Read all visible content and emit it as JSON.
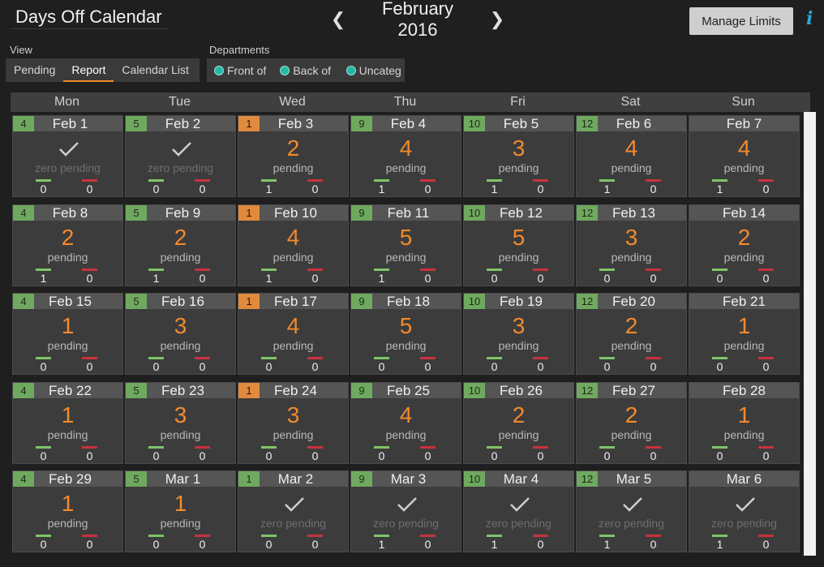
{
  "header": {
    "title": "Days Off Calendar",
    "month": "February 2016",
    "prev_icon": "chevron-left-icon",
    "next_icon": "chevron-right-icon",
    "manage_limits": "Manage Limits",
    "info_icon": "i"
  },
  "view": {
    "label": "View",
    "tabs": [
      "Pending",
      "Report",
      "Calendar List"
    ],
    "active": "Report"
  },
  "departments": {
    "label": "Departments",
    "items": [
      "Front of",
      "Back of",
      "Uncateg"
    ],
    "dot_color": "#26b8a6"
  },
  "days": [
    "Mon",
    "Tue",
    "Wed",
    "Thu",
    "Fri",
    "Sat",
    "Sun"
  ],
  "colors": {
    "accent": "#f28a2d",
    "approved": "#7fc46a",
    "denied": "#c8323c",
    "count_green": "#6fa95f",
    "count_orange": "#e08a3c"
  },
  "weeks": [
    [
      {
        "count": "4",
        "cc": "g",
        "date": "Feb 1",
        "big": "",
        "sub": "zero pending",
        "approved": "0",
        "denied": "0"
      },
      {
        "count": "5",
        "cc": "g",
        "date": "Feb 2",
        "big": "",
        "sub": "zero pending",
        "approved": "0",
        "denied": "0"
      },
      {
        "count": "1",
        "cc": "o",
        "date": "Feb 3",
        "big": "2",
        "sub": "pending",
        "approved": "1",
        "denied": "0"
      },
      {
        "count": "9",
        "cc": "g",
        "date": "Feb 4",
        "big": "4",
        "sub": "pending",
        "approved": "1",
        "denied": "0"
      },
      {
        "count": "10",
        "cc": "g",
        "date": "Feb 5",
        "big": "3",
        "sub": "pending",
        "approved": "1",
        "denied": "0"
      },
      {
        "count": "12",
        "cc": "g",
        "date": "Feb 6",
        "big": "4",
        "sub": "pending",
        "approved": "1",
        "denied": "0"
      },
      {
        "count": "",
        "cc": "",
        "date": "Feb 7",
        "big": "4",
        "sub": "pending",
        "approved": "1",
        "denied": "0"
      }
    ],
    [
      {
        "count": "4",
        "cc": "g",
        "date": "Feb 8",
        "big": "2",
        "sub": "pending",
        "approved": "1",
        "denied": "0"
      },
      {
        "count": "5",
        "cc": "g",
        "date": "Feb 9",
        "big": "2",
        "sub": "pending",
        "approved": "1",
        "denied": "0"
      },
      {
        "count": "1",
        "cc": "o",
        "date": "Feb 10",
        "big": "4",
        "sub": "pending",
        "approved": "1",
        "denied": "0"
      },
      {
        "count": "9",
        "cc": "g",
        "date": "Feb 11",
        "big": "5",
        "sub": "pending",
        "approved": "1",
        "denied": "0"
      },
      {
        "count": "10",
        "cc": "g",
        "date": "Feb 12",
        "big": "5",
        "sub": "pending",
        "approved": "0",
        "denied": "0"
      },
      {
        "count": "12",
        "cc": "g",
        "date": "Feb 13",
        "big": "3",
        "sub": "pending",
        "approved": "0",
        "denied": "0"
      },
      {
        "count": "",
        "cc": "",
        "date": "Feb 14",
        "big": "2",
        "sub": "pending",
        "approved": "0",
        "denied": "0"
      }
    ],
    [
      {
        "count": "4",
        "cc": "g",
        "date": "Feb 15",
        "big": "1",
        "sub": "pending",
        "approved": "0",
        "denied": "0"
      },
      {
        "count": "5",
        "cc": "g",
        "date": "Feb 16",
        "big": "3",
        "sub": "pending",
        "approved": "0",
        "denied": "0"
      },
      {
        "count": "1",
        "cc": "o",
        "date": "Feb 17",
        "big": "4",
        "sub": "pending",
        "approved": "0",
        "denied": "0"
      },
      {
        "count": "9",
        "cc": "g",
        "date": "Feb 18",
        "big": "5",
        "sub": "pending",
        "approved": "0",
        "denied": "0"
      },
      {
        "count": "10",
        "cc": "g",
        "date": "Feb 19",
        "big": "3",
        "sub": "pending",
        "approved": "0",
        "denied": "0"
      },
      {
        "count": "12",
        "cc": "g",
        "date": "Feb 20",
        "big": "2",
        "sub": "pending",
        "approved": "0",
        "denied": "0"
      },
      {
        "count": "",
        "cc": "",
        "date": "Feb 21",
        "big": "1",
        "sub": "pending",
        "approved": "0",
        "denied": "0"
      }
    ],
    [
      {
        "count": "4",
        "cc": "g",
        "date": "Feb 22",
        "big": "1",
        "sub": "pending",
        "approved": "0",
        "denied": "0"
      },
      {
        "count": "5",
        "cc": "g",
        "date": "Feb 23",
        "big": "3",
        "sub": "pending",
        "approved": "0",
        "denied": "0"
      },
      {
        "count": "1",
        "cc": "o",
        "date": "Feb 24",
        "big": "3",
        "sub": "pending",
        "approved": "0",
        "denied": "0"
      },
      {
        "count": "9",
        "cc": "g",
        "date": "Feb 25",
        "big": "4",
        "sub": "pending",
        "approved": "0",
        "denied": "0"
      },
      {
        "count": "10",
        "cc": "g",
        "date": "Feb 26",
        "big": "2",
        "sub": "pending",
        "approved": "0",
        "denied": "0"
      },
      {
        "count": "12",
        "cc": "g",
        "date": "Feb 27",
        "big": "2",
        "sub": "pending",
        "approved": "0",
        "denied": "0"
      },
      {
        "count": "",
        "cc": "",
        "date": "Feb 28",
        "big": "1",
        "sub": "pending",
        "approved": "0",
        "denied": "0"
      }
    ],
    [
      {
        "count": "4",
        "cc": "g",
        "date": "Feb 29",
        "big": "1",
        "sub": "pending",
        "approved": "0",
        "denied": "0"
      },
      {
        "count": "5",
        "cc": "g",
        "date": "Mar 1",
        "big": "1",
        "sub": "pending",
        "approved": "0",
        "denied": "0"
      },
      {
        "count": "1",
        "cc": "g",
        "date": "Mar 2",
        "big": "",
        "sub": "zero pending",
        "approved": "0",
        "denied": "0"
      },
      {
        "count": "9",
        "cc": "g",
        "date": "Mar 3",
        "big": "",
        "sub": "zero pending",
        "approved": "1",
        "denied": "0"
      },
      {
        "count": "10",
        "cc": "g",
        "date": "Mar 4",
        "big": "",
        "sub": "zero pending",
        "approved": "1",
        "denied": "0"
      },
      {
        "count": "12",
        "cc": "g",
        "date": "Mar 5",
        "big": "",
        "sub": "zero pending",
        "approved": "1",
        "denied": "0"
      },
      {
        "count": "",
        "cc": "",
        "date": "Mar 6",
        "big": "",
        "sub": "zero pending",
        "approved": "1",
        "denied": "0"
      }
    ]
  ]
}
